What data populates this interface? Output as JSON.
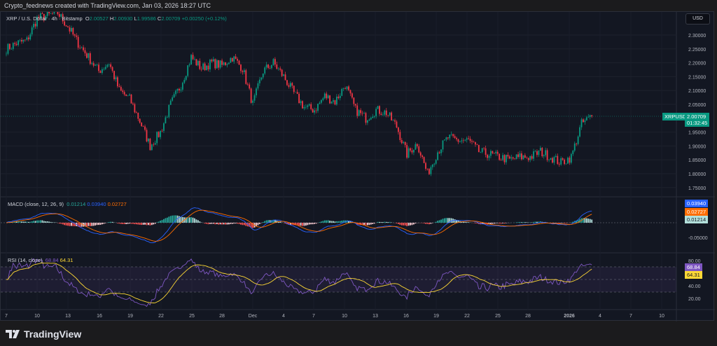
{
  "credit": "Crypto_feednews created with TradingView.com, Jan 03, 2026 18:27 UTC",
  "symbol": {
    "title": "XRP / U.S. Dollar · 4h · Bitstamp",
    "o_label": "O",
    "o": "2.00527",
    "h_label": "H",
    "h": "2.00930",
    "l_label": "L",
    "l": "1.99586",
    "c_label": "C",
    "c": "2.00709",
    "change": "+0.00250 (+0.12%)"
  },
  "currency_button": "USD",
  "price_tag": {
    "symbol": "XRPUSD",
    "price": "2.00709",
    "countdown": "01:32:45"
  },
  "macd": {
    "title": "MACD (close, 12, 26, 9)",
    "hist": "0.01214",
    "macd": "0.03940",
    "signal": "0.02727",
    "axis": [
      "-0.05000"
    ]
  },
  "rsi": {
    "title": "RSI (14, close)",
    "rsi": "68.84",
    "ma": "64.31",
    "axis": [
      "80.00",
      "40.00",
      "20.00"
    ]
  },
  "price_axis": [
    "2.30000",
    "2.25000",
    "2.20000",
    "2.15000",
    "2.10000",
    "2.05000",
    "1.95000",
    "1.90000",
    "1.85000",
    "1.80000",
    "1.75000"
  ],
  "time_axis": [
    "7",
    "10",
    "13",
    "16",
    "19",
    "22",
    "25",
    "28",
    "Dec",
    "4",
    "7",
    "10",
    "13",
    "16",
    "19",
    "22",
    "25",
    "28",
    "2026",
    "4",
    "7",
    "10"
  ],
  "brand": "TradingView",
  "colors": {
    "up": "#089981",
    "down": "#f23645",
    "macd": "#2962ff",
    "signal": "#ff6d00",
    "rsi": "#7e57c2",
    "rsi_ma": "#fdd835",
    "bg": "#131722"
  },
  "chart_data": {
    "type": "candlestick",
    "interval": "4h",
    "note_days": "Nov 7 2025 - Jan 3 2026",
    "daily_close": [
      2.25,
      2.27,
      2.28,
      2.36,
      2.37,
      2.38,
      2.33,
      2.27,
      2.22,
      2.17,
      2.2,
      2.1,
      2.07,
      1.99,
      1.9,
      1.95,
      2.05,
      2.12,
      2.22,
      2.18,
      2.2,
      2.19,
      2.22,
      2.18,
      2.05,
      2.17,
      2.2,
      2.15,
      2.09,
      2.04,
      2.03,
      2.08,
      2.06,
      2.12,
      2.03,
      2.0,
      2.03,
      2.02,
      1.97,
      1.87,
      1.91,
      1.8,
      1.88,
      1.93,
      1.92,
      1.92,
      1.88,
      1.87,
      1.86,
      1.85,
      1.86,
      1.86,
      1.88,
      1.86,
      1.84,
      1.86,
      1.98,
      2.007
    ],
    "ylim": [
      1.72,
      2.36
    ]
  }
}
